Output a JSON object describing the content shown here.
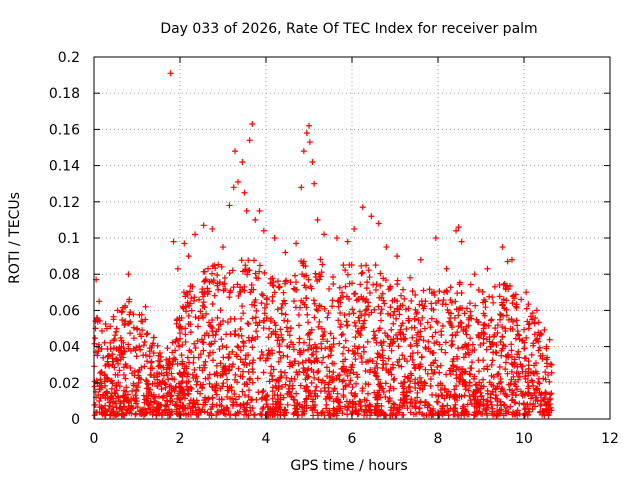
{
  "chart_data": {
    "type": "scatter",
    "title": "Day 033 of 2026, Rate Of TEC Index for receiver palm",
    "xlabel": "GPS time / hours",
    "ylabel": "ROTI / TECUs",
    "xlim": [
      0,
      12
    ],
    "ylim": [
      0,
      0.2
    ],
    "xticks": [
      0,
      2,
      4,
      6,
      8,
      10,
      12
    ],
    "xtick_labels": [
      "0",
      "2",
      "4",
      "6",
      "8",
      "10",
      "12"
    ],
    "yticks": [
      0,
      0.02,
      0.04,
      0.06,
      0.08,
      0.1,
      0.12,
      0.14,
      0.16,
      0.18,
      0.2
    ],
    "ytick_labels": [
      "0",
      "0.02",
      "0.04",
      "0.06",
      "0.08",
      "0.1",
      "0.12",
      "0.14",
      "0.16",
      "0.18",
      "0.2"
    ],
    "grid": true,
    "marker": "+",
    "color": "#ff0000",
    "x_data_range": [
      0,
      10.65
    ],
    "series": [
      {
        "name": "ROTI",
        "points": [
          [
            1.78,
            0.191
          ],
          [
            1.85,
            0.098
          ],
          [
            1.95,
            0.083
          ],
          [
            2.1,
            0.097
          ],
          [
            2.35,
            0.102
          ],
          [
            2.55,
            0.107
          ],
          [
            2.75,
            0.105
          ],
          [
            3.0,
            0.095
          ],
          [
            3.15,
            0.118
          ],
          [
            3.25,
            0.128
          ],
          [
            3.28,
            0.148
          ],
          [
            3.35,
            0.131
          ],
          [
            3.45,
            0.142
          ],
          [
            3.5,
            0.125
          ],
          [
            3.55,
            0.115
          ],
          [
            3.62,
            0.154
          ],
          [
            3.68,
            0.163
          ],
          [
            3.75,
            0.11
          ],
          [
            3.85,
            0.115
          ],
          [
            3.95,
            0.104
          ],
          [
            4.2,
            0.1
          ],
          [
            4.45,
            0.092
          ],
          [
            4.7,
            0.097
          ],
          [
            4.82,
            0.128
          ],
          [
            4.88,
            0.148
          ],
          [
            4.95,
            0.158
          ],
          [
            5.0,
            0.162
          ],
          [
            5.02,
            0.153
          ],
          [
            5.08,
            0.142
          ],
          [
            5.12,
            0.13
          ],
          [
            5.2,
            0.11
          ],
          [
            5.35,
            0.102
          ],
          [
            5.65,
            0.1
          ],
          [
            5.9,
            0.098
          ],
          [
            6.05,
            0.105
          ],
          [
            6.25,
            0.117
          ],
          [
            6.45,
            0.112
          ],
          [
            6.62,
            0.108
          ],
          [
            6.8,
            0.095
          ],
          [
            7.05,
            0.09
          ],
          [
            7.35,
            0.078
          ],
          [
            7.6,
            0.088
          ],
          [
            7.95,
            0.1
          ],
          [
            8.2,
            0.083
          ],
          [
            8.42,
            0.104
          ],
          [
            8.48,
            0.106
          ],
          [
            8.55,
            0.098
          ],
          [
            8.85,
            0.08
          ],
          [
            9.15,
            0.083
          ],
          [
            9.5,
            0.095
          ],
          [
            9.62,
            0.087
          ],
          [
            9.72,
            0.088
          ],
          [
            10.05,
            0.07
          ],
          [
            10.3,
            0.06
          ],
          [
            0.8,
            0.08
          ],
          [
            0.05,
            0.077
          ],
          [
            0.12,
            0.065
          ],
          [
            0.3,
            0.05
          ],
          [
            0.55,
            0.06
          ],
          [
            1.0,
            0.05
          ],
          [
            1.2,
            0.062
          ],
          [
            1.5,
            0.035
          ],
          [
            2.2,
            0.09
          ],
          [
            4.1,
            0.075
          ],
          [
            5.8,
            0.085
          ]
        ]
      }
    ]
  }
}
